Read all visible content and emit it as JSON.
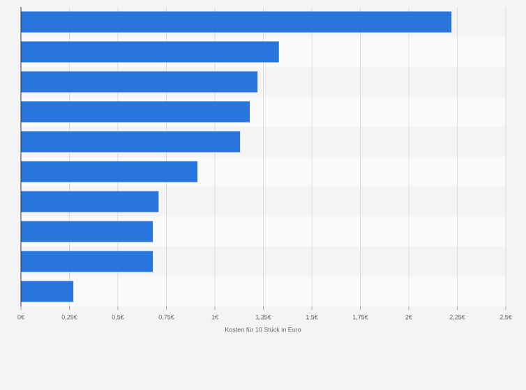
{
  "chart_data": {
    "type": "hbar",
    "categories": [
      null,
      null,
      null,
      null,
      null,
      null,
      null,
      null,
      null,
      null
    ],
    "values": [
      2.22,
      1.33,
      1.22,
      1.18,
      1.13,
      0.91,
      0.71,
      0.68,
      0.68,
      0.27
    ],
    "color": "#2876dd",
    "x_label": "Kosten für 10 Stück in Euro",
    "xlim": [
      0,
      2.5
    ],
    "xticks": [
      {
        "value": 0,
        "label": "0€"
      },
      {
        "value": 0.25,
        "label": "0,25€"
      },
      {
        "value": 0.5,
        "label": "0,5€"
      },
      {
        "value": 0.75,
        "label": "0,75€"
      },
      {
        "value": 1,
        "label": "1€"
      },
      {
        "value": 1.25,
        "label": "1,25€"
      },
      {
        "value": 1.5,
        "label": "1,5€"
      },
      {
        "value": 1.75,
        "label": "1,75€"
      },
      {
        "value": 2,
        "label": "2€"
      },
      {
        "value": 2.25,
        "label": "2,25€"
      },
      {
        "value": 2.5,
        "label": "2,5€"
      }
    ],
    "grid": true
  }
}
